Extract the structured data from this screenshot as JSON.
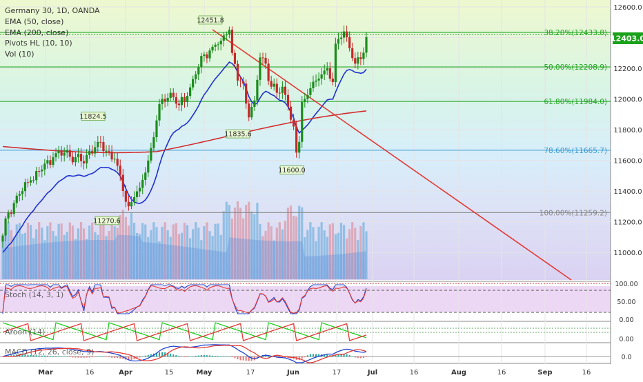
{
  "legend": {
    "symbol": "Germany 30, 1D, OANDA",
    "ema50": "EMA (50, close)",
    "ema200": "EMA (200, close)",
    "pivots": "Pivots HL (10, 10)",
    "vol": "Vol (10)"
  },
  "panes": {
    "stoch": "Stoch (14, 3, 1)",
    "aroon": "Aroon (14)",
    "macd": "MACD (12, 26, close, 9)"
  },
  "last_price": "12403.0",
  "price_ticks": [
    "12600.0",
    "12400.0",
    "12200.0",
    "12000.0",
    "11800.0",
    "11600.0",
    "11400.0",
    "11200.0",
    "11000.0"
  ],
  "stoch_ticks": [
    "100.00",
    "50.00",
    "0.00"
  ],
  "aroon_ticks": [
    "0.00"
  ],
  "macd_ticks": [
    "0.0"
  ],
  "x_ticks": [
    "Mar",
    "16",
    "Apr",
    "15",
    "May",
    "17",
    "Jun",
    "17",
    "Jul",
    "16",
    "Aug",
    "16",
    "Sep",
    "16"
  ],
  "colors": {
    "up": "#26a69a",
    "up_fill": "#1b8c1b",
    "down": "#c62828",
    "ema50": "#1e2fd0",
    "ema200": "#d32f2f",
    "trend": "#e53935",
    "fib": "#22a822",
    "stoch_k": "#1e44d0",
    "stoch_d": "#e53935"
  },
  "chart_data": {
    "type": "candlestick",
    "y_range": [
      10980,
      12660
    ],
    "last_price": 12403.0,
    "fib_levels": [
      {
        "ratio": "38.20%",
        "price": 12433.8,
        "label": "38.20%(12433.8)"
      },
      {
        "ratio": "50.00%",
        "price": 12208.9,
        "label": "50.00%(12208.9)"
      },
      {
        "ratio": "61.80%",
        "price": 11984.0,
        "label": "61.80%(11984.0)"
      },
      {
        "ratio": "78.60%",
        "price": 11665.7,
        "label": "78.60%(11665.7)"
      },
      {
        "ratio": "100.00%",
        "price": 11259.2,
        "label": "100.00%(11259.2)"
      }
    ],
    "pivot_labels": [
      {
        "text": "12451.8",
        "price": 12451.8,
        "kind": "high"
      },
      {
        "text": "11824.5",
        "price": 11824.5,
        "kind": "high"
      },
      {
        "text": "11835.6",
        "price": 11835.6,
        "kind": "low"
      },
      {
        "text": "11600.0",
        "price": 11600.0,
        "kind": "low"
      },
      {
        "text": "11270.6",
        "price": 11270.6,
        "kind": "low"
      }
    ]
  }
}
